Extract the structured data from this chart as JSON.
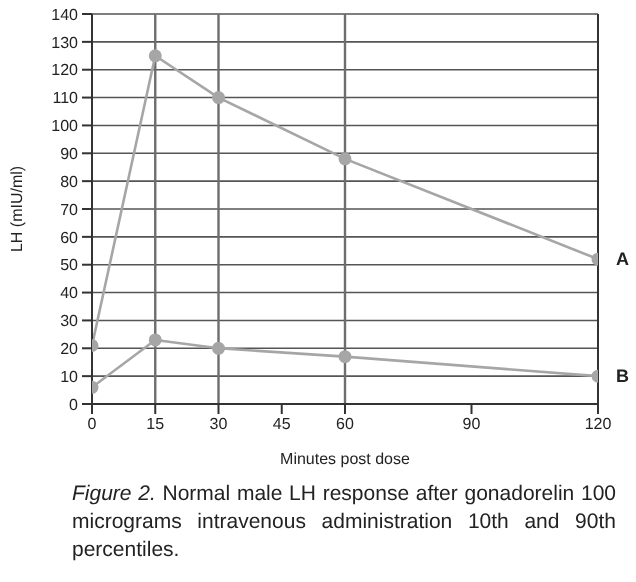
{
  "chart_data": {
    "type": "line",
    "xlabel": "Minutes post dose",
    "ylabel": "LH (mIU/ml)",
    "x": [
      0,
      15,
      30,
      60,
      120
    ],
    "series": [
      {
        "name": "A",
        "color": "#a6a6a6",
        "values": [
          21,
          125,
          110,
          88,
          52
        ]
      },
      {
        "name": "B",
        "color": "#a6a6a6",
        "values": [
          6,
          23,
          20,
          17,
          10
        ]
      }
    ],
    "xlim": [
      0,
      120
    ],
    "xticks": [
      0,
      15,
      30,
      45,
      60,
      90,
      120
    ],
    "ylim": [
      0,
      140
    ],
    "yticks": [
      0,
      10,
      20,
      30,
      40,
      50,
      60,
      70,
      80,
      90,
      100,
      110,
      120,
      130,
      140
    ],
    "grid": "y",
    "marker": "circle",
    "line_style": "solid",
    "ref_lines": [
      {
        "axis": "x",
        "value": 15,
        "color": "#6e6e6e"
      },
      {
        "axis": "x",
        "value": 30,
        "color": "#6e6e6e"
      },
      {
        "axis": "x",
        "value": 60,
        "color": "#6e6e6e"
      }
    ],
    "annotations": [
      "Figure 2. Normal male LH response after gonadorelin 100 micrograms intravenous administration 10th and 90th percentiles."
    ]
  }
}
